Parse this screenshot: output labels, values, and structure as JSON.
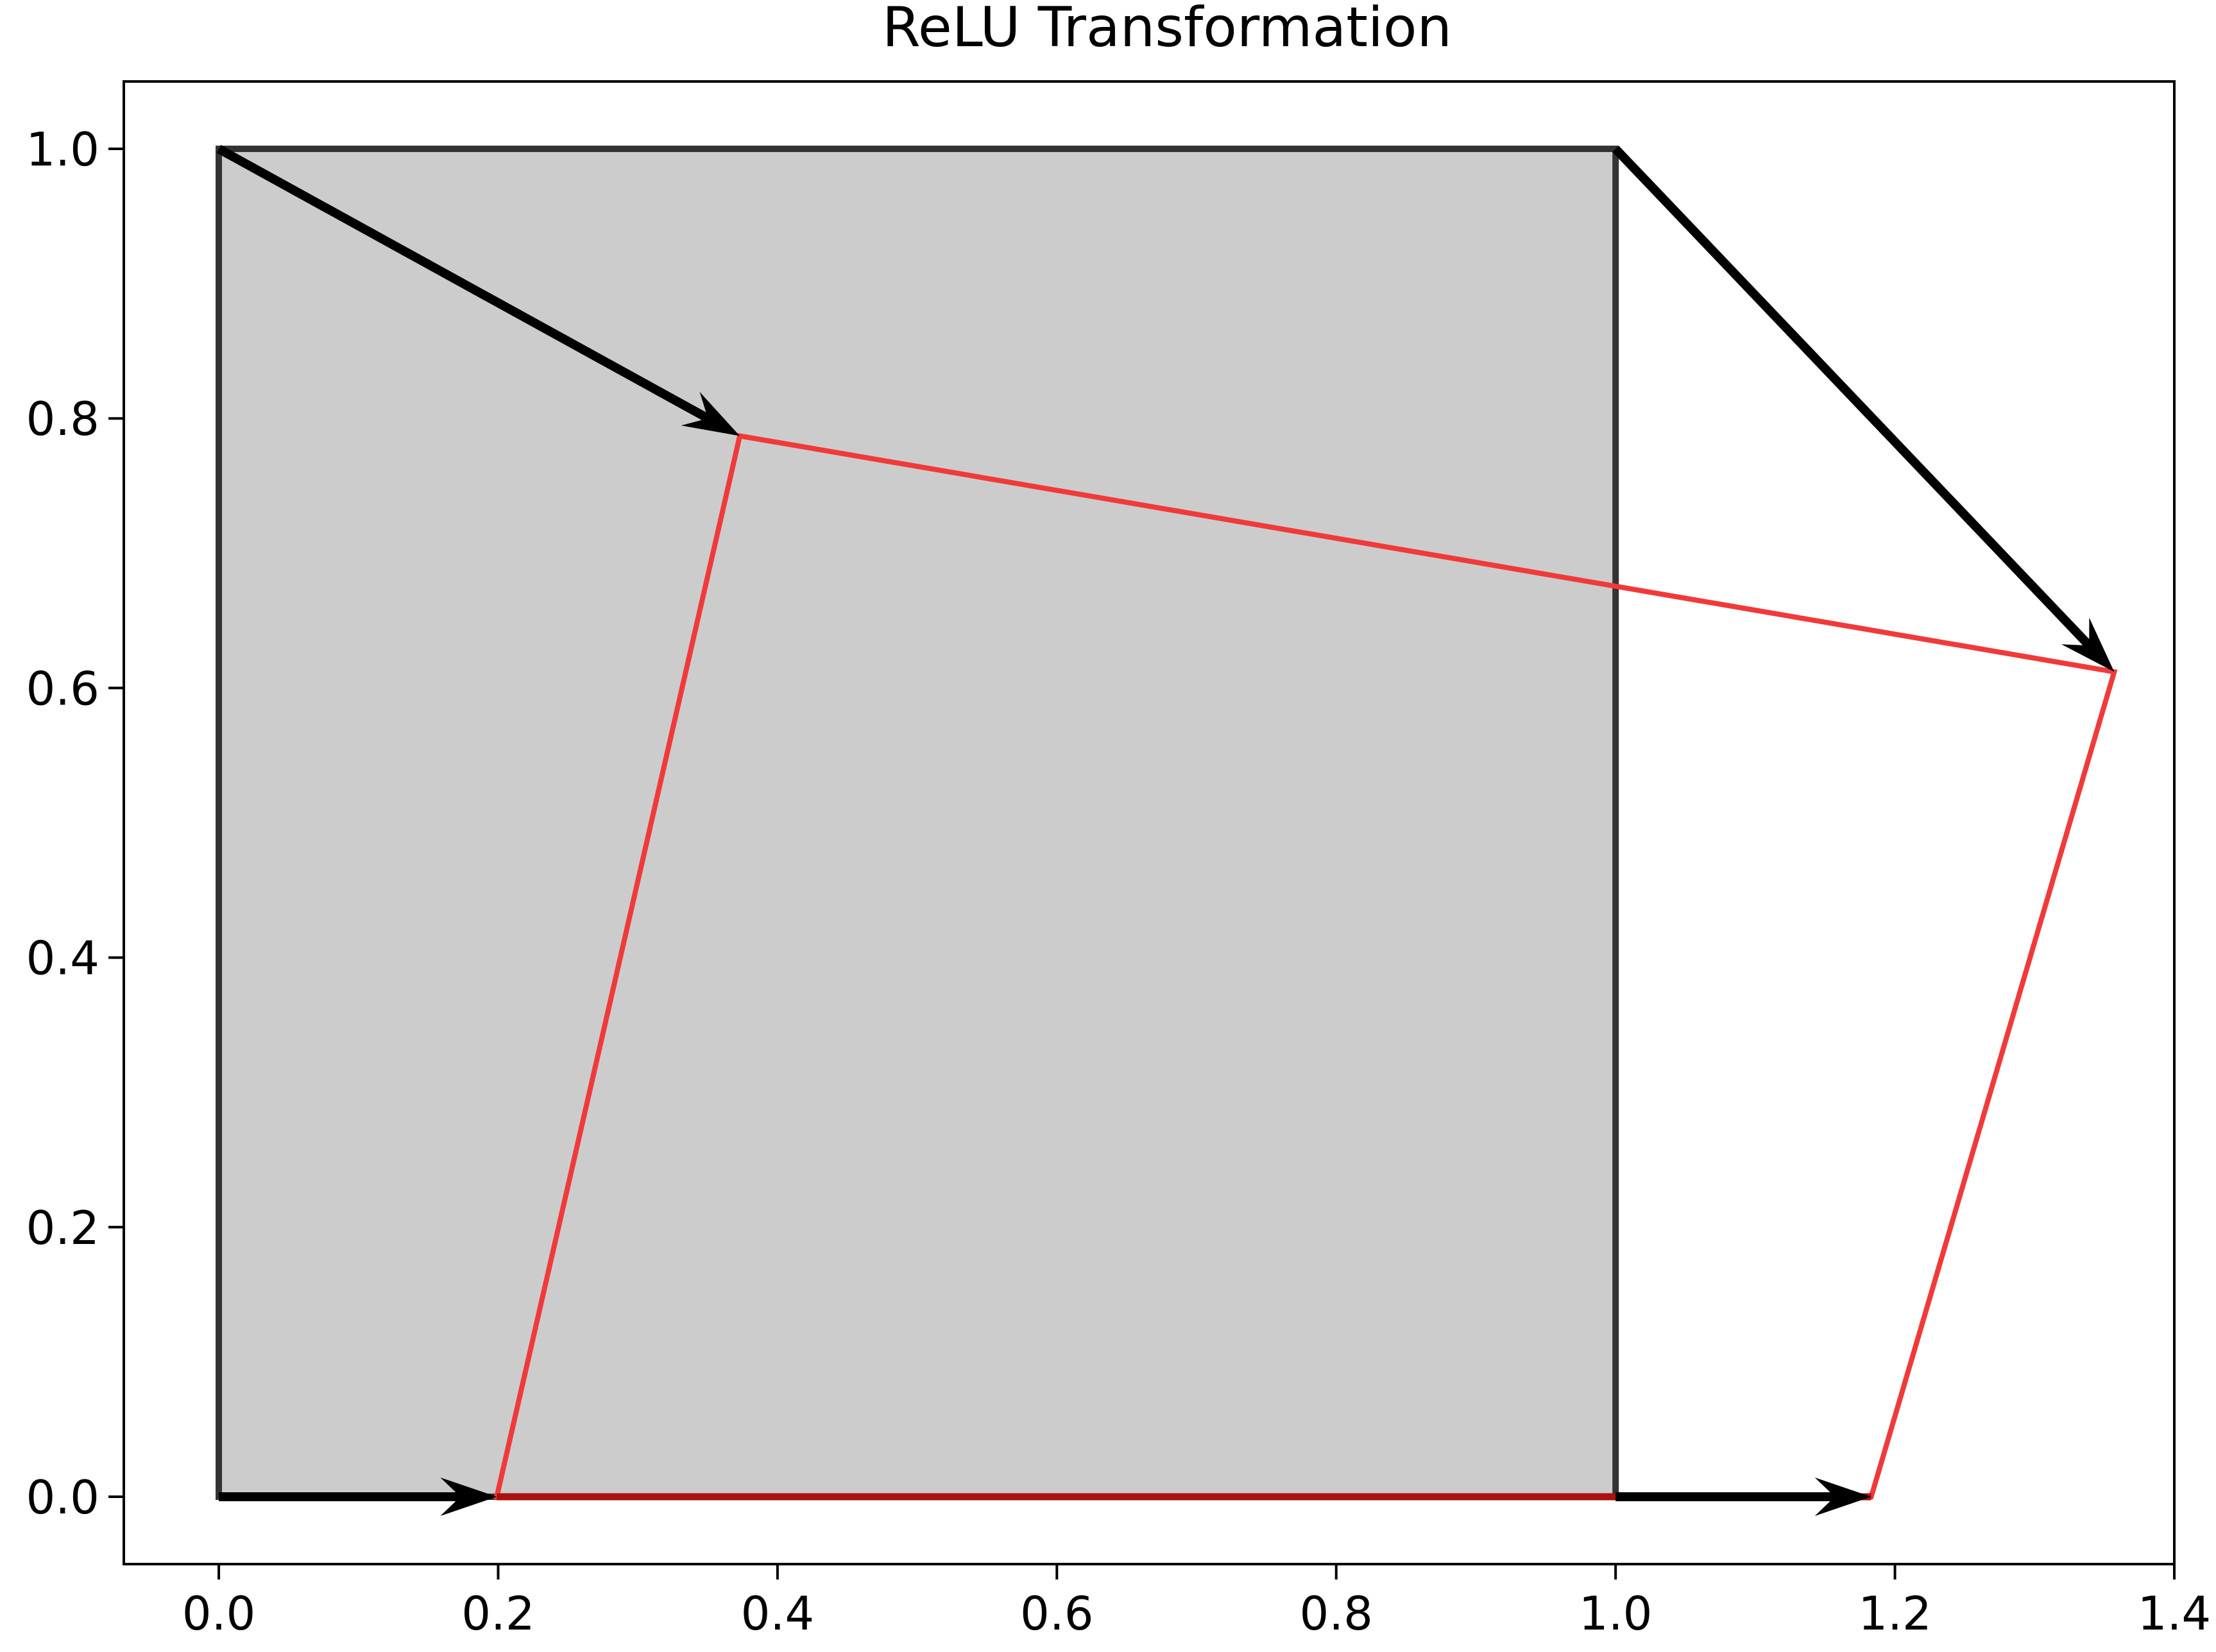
{
  "chart_data": {
    "type": "line",
    "title": "ReLU Transformation",
    "xlabel": "",
    "ylabel": "",
    "xlim": [
      -0.068,
      1.4
    ],
    "ylim": [
      -0.05,
      1.05
    ],
    "grid": false,
    "legend": "none",
    "x_ticks": [
      "0.0",
      "0.2",
      "0.4",
      "0.6",
      "0.8",
      "1.0",
      "1.2",
      "1.4"
    ],
    "y_ticks": [
      "0.0",
      "0.2",
      "0.4",
      "0.6",
      "0.8",
      "1.0"
    ],
    "shapes": [
      {
        "role": "original-unit-square",
        "fill": "#cccccc",
        "stroke": "#333333",
        "points": [
          [
            0,
            0
          ],
          [
            1,
            0
          ],
          [
            1,
            1
          ],
          [
            0,
            1
          ]
        ]
      },
      {
        "role": "transformed-quadrilateral",
        "fill": "none",
        "stroke": "#f03a3a",
        "points": [
          [
            0.199,
            0.0
          ],
          [
            1.183,
            0.0
          ],
          [
            1.357,
            0.612
          ],
          [
            0.373,
            0.787
          ]
        ]
      }
    ],
    "arrows": [
      {
        "from": [
          0,
          0
        ],
        "to": [
          0.199,
          0.0
        ]
      },
      {
        "from": [
          1,
          0
        ],
        "to": [
          1.183,
          0.0
        ]
      },
      {
        "from": [
          1,
          1
        ],
        "to": [
          1.357,
          0.612
        ]
      },
      {
        "from": [
          0,
          1
        ],
        "to": [
          0.373,
          0.787
        ]
      }
    ],
    "colors": {
      "square_fill": "#cccccc",
      "square_edge": "#333333",
      "transformed_edge": "#f03a3a",
      "overlap_edge": "#aa1111",
      "arrow": "#000000"
    }
  }
}
